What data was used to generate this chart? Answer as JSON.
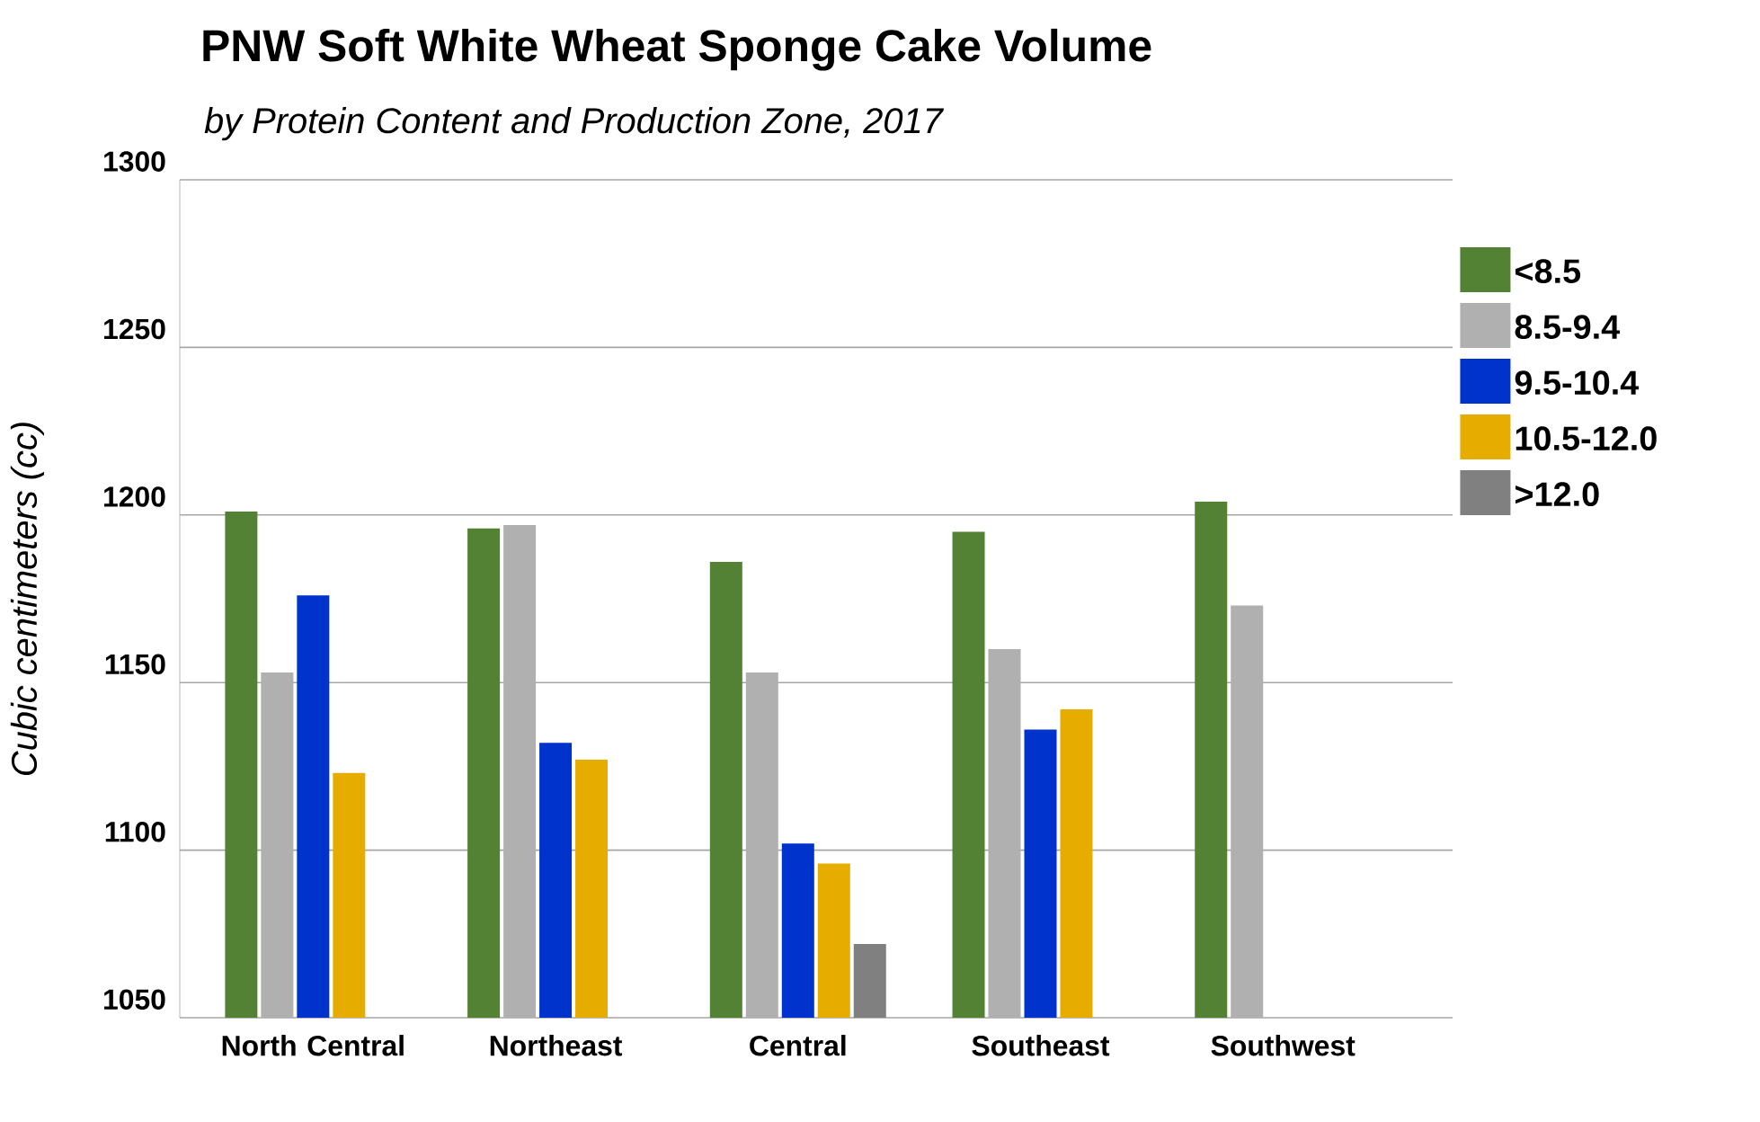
{
  "chart_data": {
    "type": "bar",
    "title": "PNW Soft White Wheat Sponge Cake Volume",
    "subtitle": "by Protein Content and Production Zone, 2017",
    "ylabel": "Cubic centimeters (cc)",
    "categories": [
      "North Central",
      "Northeast",
      "Central",
      "Southeast",
      "Southwest"
    ],
    "series": [
      {
        "name": "<8.5",
        "color": "#548235",
        "values": [
          1201,
          1196,
          1186,
          1195,
          1204
        ]
      },
      {
        "name": "8.5-9.4",
        "color": "#b0b0b0",
        "values": [
          1153,
          1197,
          1153,
          1160,
          1173
        ]
      },
      {
        "name": "9.5-10.4",
        "color": "#0033cc",
        "values": [
          1176,
          1132,
          1102,
          1136,
          null
        ]
      },
      {
        "name": "10.5-12.0",
        "color": "#e6ac00",
        "values": [
          1123,
          1127,
          1096,
          1142,
          null
        ]
      },
      {
        "name": ">12.0",
        "color": "#808080",
        "values": [
          null,
          null,
          1072,
          null,
          null
        ]
      }
    ],
    "ylim": [
      1050,
      1300
    ],
    "yticks": [
      1050,
      1100,
      1150,
      1200,
      1250,
      1300
    ],
    "grid": "y",
    "legend": "top right"
  }
}
